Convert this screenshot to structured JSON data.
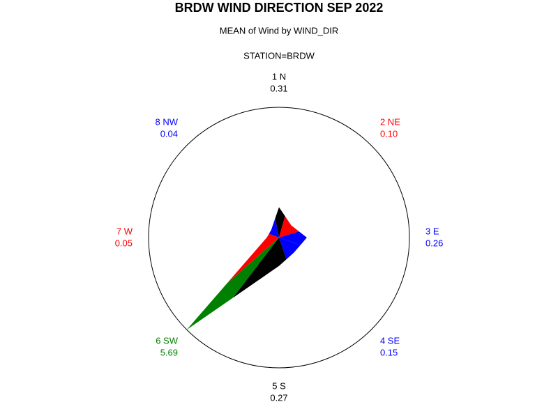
{
  "chart_data": {
    "type": "star",
    "title": "BRDW WIND DIRECTION SEP 2022",
    "subtitle": "MEAN of Wind by WIND_DIR",
    "group_label": "STATION=BRDW",
    "categories": [
      "1 N",
      "2 NE",
      "3 E",
      "4 SE",
      "5 S",
      "6 SW",
      "7 W",
      "8 NW"
    ],
    "values": [
      0.31,
      0.1,
      0.26,
      0.15,
      0.27,
      5.69,
      0.05,
      0.04
    ],
    "value_labels": [
      "0.31",
      "0.10",
      "0.26",
      "0.15",
      "0.27",
      "5.69",
      "0.05",
      "0.04"
    ],
    "colors": [
      "#000000",
      "#ff0000",
      "#0000ff",
      "#0000ff",
      "#000000",
      "#008000",
      "#ff0000",
      "#0000ff"
    ]
  }
}
